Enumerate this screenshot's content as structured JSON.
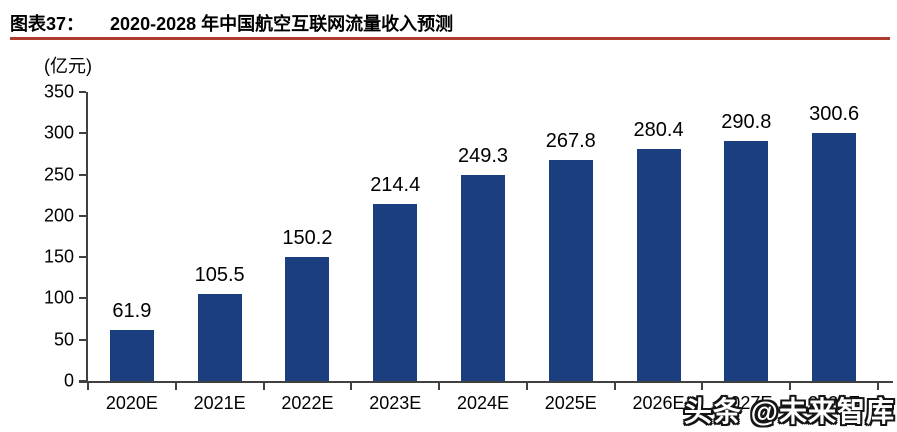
{
  "header": {
    "figure_label": "图表37：",
    "title": "2020-2028 年中国航空互联网流量收入预测"
  },
  "watermark": {
    "text": "头条 @未来智库"
  },
  "colors": {
    "bar": "#1B3F7E",
    "divider_red": "#B03A2E",
    "axis": "#404040",
    "background": "#FFFFFF",
    "text": "#000000"
  },
  "chart_data": {
    "type": "bar",
    "title": "图表37：2020-2028 年中国航空互联网流量收入预测",
    "unit_label": "(亿元)",
    "xlabel": "",
    "ylabel": "(亿元)",
    "categories": [
      "2020E",
      "2021E",
      "2022E",
      "2023E",
      "2024E",
      "2025E",
      "2026E",
      "2027E",
      "2028E"
    ],
    "values": [
      61.9,
      105.5,
      150.2,
      214.4,
      249.3,
      267.8,
      280.4,
      290.8,
      300.6
    ],
    "value_labels": [
      "61.9",
      "105.5",
      "150.2",
      "214.4",
      "249.3",
      "267.8",
      "280.4",
      "290.8",
      "300.6"
    ],
    "ylim": [
      0,
      350
    ],
    "ytick_step": 50,
    "ytick_labels": [
      "0",
      "50",
      "100",
      "150",
      "200",
      "250",
      "300",
      "350"
    ],
    "grid": false,
    "legend_position": "none",
    "bar_color": "#1B3F7E"
  }
}
